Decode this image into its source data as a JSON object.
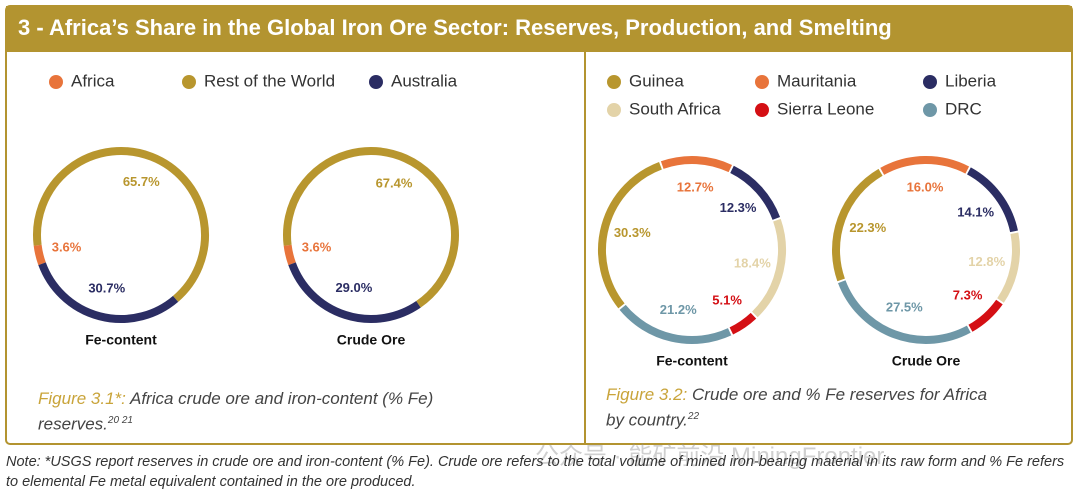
{
  "header": {
    "title": "3 - Africa’s Share in the Global Iron Ore Sector: Reserves, Production, and Smelting"
  },
  "chart_data": [
    {
      "type": "donut",
      "subtitle": "Fe-content",
      "categories": [
        "Africa",
        "Rest of the World",
        "Australia"
      ],
      "values": [
        3.6,
        65.7,
        30.7
      ],
      "value_labels": [
        "3.6%",
        "65.7%",
        "30.7%"
      ],
      "colors": [
        "#e8743b",
        "#b8962e",
        "#2b2d63"
      ]
    },
    {
      "type": "donut",
      "subtitle": "Crude Ore",
      "categories": [
        "Africa",
        "Rest of the World",
        "Australia"
      ],
      "values": [
        3.6,
        67.4,
        29.0
      ],
      "value_labels": [
        "3.6%",
        "67.4%",
        "29.0%"
      ],
      "colors": [
        "#e8743b",
        "#b8962e",
        "#2b2d63"
      ]
    },
    {
      "type": "donut",
      "subtitle": "Fe-content",
      "categories": [
        "Guinea",
        "Mauritania",
        "Liberia",
        "South Africa",
        "Sierra Leone",
        "DRC"
      ],
      "values": [
        30.3,
        12.7,
        12.3,
        18.4,
        5.1,
        21.2
      ],
      "value_labels": [
        "30.3%",
        "12.7%",
        "12.3%",
        "18.4%",
        "5.1%",
        "21.2%"
      ],
      "colors": [
        "#b8962e",
        "#e8743b",
        "#2b2d63",
        "#e3d3a8",
        "#d40f14",
        "#6e97a7"
      ]
    },
    {
      "type": "donut",
      "subtitle": "Crude Ore",
      "categories": [
        "Guinea",
        "Mauritania",
        "Liberia",
        "South Africa",
        "Sierra Leone",
        "DRC"
      ],
      "values": [
        22.3,
        16.0,
        14.1,
        12.8,
        7.3,
        27.5
      ],
      "value_labels": [
        "22.3%",
        "16.0%",
        "14.1%",
        "12.8%",
        "7.3%",
        "27.5%"
      ],
      "colors": [
        "#b8962e",
        "#e8743b",
        "#2b2d63",
        "#e3d3a8",
        "#d40f14",
        "#6e97a7"
      ]
    }
  ],
  "captions": [
    {
      "label": "Figure 3.1*:",
      "text": "Africa crude ore and iron-content (% Fe) reserves.",
      "refs": "20 21"
    },
    {
      "label": "Figure 3.2:",
      "text": "Crude ore and % Fe reserves for Africa by country.",
      "refs": "22"
    }
  ],
  "watermark": "公众号 · 能矿前沿 MiningFrontier",
  "note": "Note: *USGS report reserves in crude ore and iron-content (% Fe). Crude ore refers to the total volume of mined iron-bearing material in its raw form and % Fe refers to elemental Fe metal equivalent contained in the ore produced."
}
